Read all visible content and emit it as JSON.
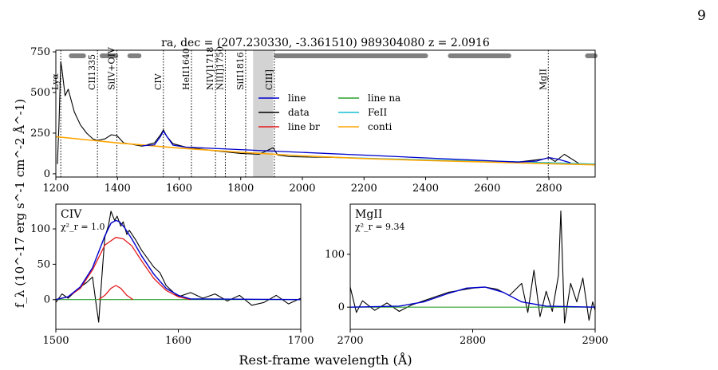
{
  "page_number": "9",
  "title": "ra, dec = (207.230330, -3.361510)   989304080   z = 2.0916",
  "ylabel": "f_λ (10^-17 erg s^-1 cm^-2 Å^-1)",
  "xlabel": "Rest-frame wavelength (Å)",
  "colors": {
    "data": "#000000",
    "line": "#0000cc",
    "line_br": "#e41a1c",
    "line_na": "#2ca02c",
    "feii": "#17becf",
    "conti": "#ffa500",
    "band": "#808080",
    "shade": "#d3d3d3"
  },
  "chart_data": [
    {
      "panel": "top",
      "type": "line",
      "xlim": [
        1200,
        2950
      ],
      "ylim": [
        -20,
        760
      ],
      "xticks": [
        1200,
        1400,
        1600,
        1800,
        2000,
        2200,
        2400,
        2600,
        2800
      ],
      "yticks": [
        0,
        250,
        500,
        750
      ],
      "line_markers": [
        {
          "x": 1216,
          "label": "Lyα"
        },
        {
          "x": 1335,
          "label": "CII1335"
        },
        {
          "x": 1398,
          "label": "SiIV+OIV"
        },
        {
          "x": 1549,
          "label": "CIV"
        },
        {
          "x": 1640,
          "label": "HeII1640"
        },
        {
          "x": 1718,
          "label": "NIV]1718"
        },
        {
          "x": 1750,
          "label": "NIII]1750"
        },
        {
          "x": 1816,
          "label": "SiII1816"
        },
        {
          "x": 1909,
          "label": "CIII]"
        },
        {
          "x": 2798,
          "label": "MgII"
        }
      ],
      "shaded_region": [
        1840,
        1905
      ],
      "fit_windows": [
        [
          1250,
          1290
        ],
        [
          1350,
          1360
        ],
        [
          1365,
          1395
        ],
        [
          1440,
          1470
        ],
        [
          1915,
          2400
        ],
        [
          2480,
          2670
        ],
        [
          2925,
          2950
        ]
      ],
      "legend": [
        "line",
        "data",
        "line br",
        "line na",
        "FeII",
        "conti"
      ],
      "conti": {
        "x": [
          1200,
          1400,
          1600,
          1800,
          2000,
          2200,
          2400,
          2600,
          2800,
          2950
        ],
        "y": [
          228,
          190,
          158,
          132,
          110,
          94,
          82,
          72,
          62,
          55
        ]
      },
      "feii": {
        "x": [
          1960,
          2100,
          2250,
          2400,
          2550,
          2700,
          2850,
          2950
        ],
        "y": [
          112,
          102,
          94,
          86,
          80,
          74,
          66,
          60
        ]
      },
      "data": {
        "x": [
          1205,
          1210,
          1216,
          1220,
          1230,
          1240,
          1260,
          1280,
          1300,
          1320,
          1335,
          1360,
          1380,
          1398,
          1420,
          1450,
          1480,
          1520,
          1540,
          1549,
          1560,
          1580,
          1620,
          1700,
          1800,
          1860,
          1905,
          1920,
          1960,
          2100,
          2300,
          2500,
          2700,
          2780,
          2800,
          2820,
          2850,
          2900,
          2950
        ],
        "y": [
          60,
          300,
          690,
          640,
          480,
          520,
          380,
          300,
          250,
          215,
          205,
          215,
          240,
          235,
          190,
          180,
          170,
          190,
          240,
          270,
          230,
          185,
          165,
          145,
          125,
          120,
          160,
          115,
          105,
          100,
          90,
          80,
          72,
          90,
          100,
          75,
          120,
          60,
          55
        ]
      },
      "line_fit": {
        "x": [
          1480,
          1520,
          1540,
          1549,
          1560,
          1580,
          1620,
          2700,
          2760,
          2790,
          2805,
          2830,
          2870
        ],
        "y": [
          172,
          178,
          230,
          262,
          230,
          176,
          164,
          72,
          78,
          95,
          98,
          90,
          68
        ]
      }
    },
    {
      "panel": "CIV",
      "label": "CIV",
      "chi2": "χ²_r = 1.0",
      "type": "line",
      "xlim": [
        1500,
        1700
      ],
      "ylim": [
        -42,
        135
      ],
      "xticks": [
        1500,
        1600,
        1700
      ],
      "yticks": [
        0,
        50,
        100
      ],
      "data": {
        "x": [
          1500,
          1505,
          1510,
          1515,
          1520,
          1525,
          1530,
          1533,
          1535,
          1538,
          1540,
          1543,
          1545,
          1548,
          1550,
          1553,
          1555,
          1558,
          1560,
          1565,
          1570,
          1575,
          1580,
          1585,
          1590,
          1595,
          1600,
          1610,
          1620,
          1630,
          1640,
          1650,
          1660,
          1670,
          1680,
          1690,
          1700
        ],
        "y": [
          -4,
          8,
          2,
          10,
          18,
          24,
          32,
          -8,
          -32,
          42,
          88,
          105,
          125,
          112,
          118,
          104,
          110,
          92,
          98,
          85,
          70,
          58,
          46,
          38,
          20,
          12,
          4,
          10,
          2,
          8,
          -2,
          6,
          -8,
          -4,
          6,
          -6,
          2
        ]
      },
      "line_fit": {
        "x": [
          1500,
          1510,
          1520,
          1530,
          1540,
          1545,
          1549,
          1552,
          1556,
          1562,
          1570,
          1580,
          1590,
          1600,
          1610,
          1700
        ],
        "y": [
          0,
          4,
          18,
          45,
          90,
          108,
          112,
          110,
          102,
          86,
          62,
          36,
          16,
          6,
          1,
          0
        ]
      },
      "line_br": {
        "x": [
          1500,
          1510,
          1520,
          1530,
          1540,
          1549,
          1555,
          1562,
          1570,
          1580,
          1590,
          1600,
          1610
        ],
        "y": [
          0,
          4,
          16,
          42,
          77,
          88,
          86,
          76,
          55,
          30,
          13,
          4,
          0
        ]
      },
      "line_br_narrow": {
        "x": [
          1535,
          1540,
          1545,
          1549,
          1553,
          1558,
          1563
        ],
        "y": [
          0,
          6,
          16,
          20,
          16,
          6,
          0
        ]
      },
      "line_na": {
        "x": [
          1500,
          1700
        ],
        "y": [
          0,
          0
        ]
      }
    },
    {
      "panel": "MgII",
      "label": "MgII",
      "chi2": "χ²_r = 9.34",
      "type": "line",
      "xlim": [
        2700,
        2900
      ],
      "ylim": [
        -42,
        195
      ],
      "xticks": [
        2700,
        2800,
        2900
      ],
      "yticks": [
        0,
        100
      ],
      "data": {
        "x": [
          2700,
          2705,
          2710,
          2720,
          2730,
          2740,
          2750,
          2760,
          2770,
          2780,
          2790,
          2800,
          2810,
          2820,
          2830,
          2840,
          2845,
          2850,
          2855,
          2860,
          2865,
          2870,
          2872,
          2875,
          2880,
          2885,
          2890,
          2895,
          2898,
          2900
        ],
        "y": [
          38,
          -10,
          12,
          -6,
          8,
          -8,
          4,
          12,
          20,
          28,
          32,
          36,
          38,
          34,
          22,
          45,
          -10,
          70,
          -18,
          30,
          -8,
          60,
          182,
          -30,
          45,
          10,
          55,
          -25,
          10,
          -6
        ]
      },
      "line_fit": {
        "x": [
          2700,
          2740,
          2760,
          2780,
          2795,
          2810,
          2825,
          2840,
          2860,
          2900
        ],
        "y": [
          0,
          2,
          10,
          26,
          36,
          38,
          28,
          10,
          2,
          0
        ]
      },
      "line_na": {
        "x": [
          2700,
          2900
        ],
        "y": [
          0,
          0
        ]
      }
    }
  ]
}
